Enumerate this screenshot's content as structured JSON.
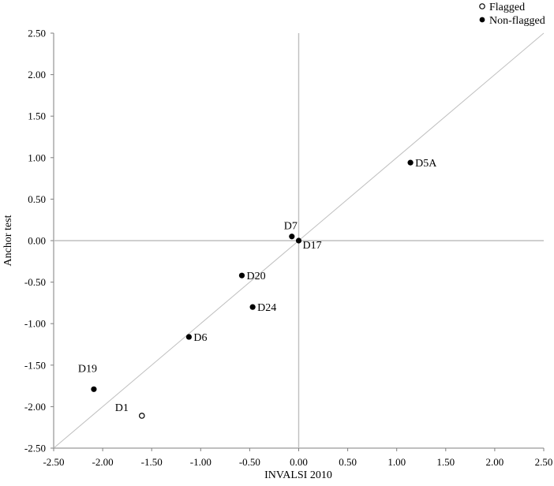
{
  "chart_data": {
    "type": "scatter",
    "title": "",
    "xlabel": "INVALSI 2010",
    "ylabel": "Anchor test",
    "xlim": [
      -2.5,
      2.5
    ],
    "ylim": [
      -2.5,
      2.5
    ],
    "x_ticks": [
      "-2.50",
      "-2.00",
      "-1.50",
      "-1.00",
      "-0.50",
      "0.00",
      "0.50",
      "1.00",
      "1.50",
      "2.00",
      "2.50"
    ],
    "y_ticks": [
      "2.50",
      "2.00",
      "1.50",
      "1.00",
      "0.50",
      "0.00",
      "-0.50",
      "-1.00",
      "-1.50",
      "-2.00",
      "-2.50"
    ],
    "grid": false,
    "reference_line": "identity (y = x)",
    "legend_position": "top-right",
    "series": [
      {
        "name": "Flagged",
        "marker": "hollow-circle",
        "points": [
          {
            "label": "D1",
            "x": -1.6,
            "y": -2.11
          }
        ]
      },
      {
        "name": "Non-flagged",
        "marker": "filled-circle",
        "points": [
          {
            "label": "D19",
            "x": -2.09,
            "y": -1.79
          },
          {
            "label": "D6",
            "x": -1.12,
            "y": -1.16
          },
          {
            "label": "D20",
            "x": -0.58,
            "y": -0.42
          },
          {
            "label": "D24",
            "x": -0.47,
            "y": -0.8
          },
          {
            "label": "D7",
            "x": -0.07,
            "y": 0.05
          },
          {
            "label": "D17",
            "x": 0.0,
            "y": 0.0
          },
          {
            "label": "D5A",
            "x": 1.14,
            "y": 0.94
          }
        ]
      }
    ],
    "colors": {
      "marker": "#000000",
      "reference": "#bfbfbf",
      "axis": "#7f7f7f"
    }
  }
}
